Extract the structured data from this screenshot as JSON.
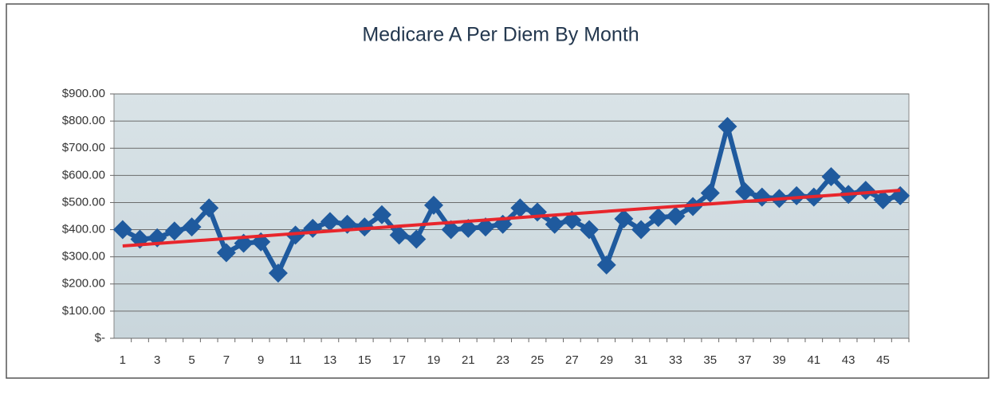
{
  "chart_data": {
    "type": "line",
    "title": "Medicare A Per Diem By Month",
    "categories": [
      "1",
      null,
      "3",
      null,
      "5",
      null,
      "7",
      null,
      "9",
      null,
      "11",
      null,
      "13",
      null,
      "15",
      null,
      "17",
      null,
      "19",
      null,
      "21",
      null,
      "23",
      null,
      "25",
      null,
      "27",
      null,
      "29",
      null,
      "31",
      null,
      "33",
      null,
      "35",
      null,
      "37",
      null,
      "39",
      null,
      "41",
      null,
      "43",
      null,
      "45",
      null
    ],
    "series": [
      {
        "color": "#1f5a9e",
        "values": [
          400,
          365,
          370,
          395,
          410,
          480,
          315,
          350,
          355,
          240,
          380,
          405,
          430,
          420,
          410,
          455,
          380,
          365,
          490,
          400,
          405,
          410,
          420,
          480,
          465,
          420,
          435,
          400,
          270,
          440,
          400,
          445,
          450,
          485,
          535,
          780,
          540,
          520,
          515,
          525,
          520,
          595,
          530,
          545,
          510,
          525
        ]
      }
    ],
    "trendline": {
      "color": "#e8262c",
      "values": [
        340,
        545
      ]
    },
    "ylim": [
      0,
      900
    ],
    "yticks": [
      {
        "value": 0,
        "label": "$-"
      },
      {
        "value": 100,
        "label": "$100.00"
      },
      {
        "value": 200,
        "label": "$200.00"
      },
      {
        "value": 300,
        "label": "$300.00"
      },
      {
        "value": 400,
        "label": "$400.00"
      },
      {
        "value": 500,
        "label": "$500.00"
      },
      {
        "value": 600,
        "label": "$600.00"
      },
      {
        "value": 700,
        "label": "$700.00"
      },
      {
        "value": 800,
        "label": "$800.00"
      },
      {
        "value": 900,
        "label": "$900.00"
      }
    ],
    "grid": true
  }
}
